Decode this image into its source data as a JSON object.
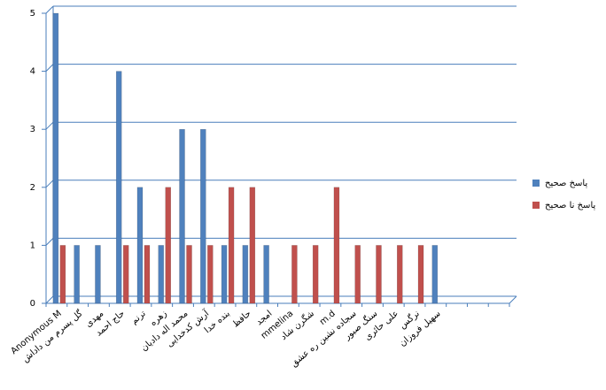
{
  "chart_data": {
    "type": "bar",
    "categories": [
      "Anonymous M",
      "گل پسرم من داداش",
      "مهدی",
      "حاج احمد",
      "ترنم",
      "زهره",
      "محمد اله دادیان",
      "آرش کدخدایی",
      "بنده خدا",
      "حافظ",
      "امجد",
      "mmelina",
      "شگرن شاد",
      "m.d",
      "سجاده نشین ره عشق",
      "سنگ صبور",
      "علی حائری",
      "نرگس",
      "سهیل فروزان",
      null,
      null,
      null
    ],
    "series": [
      {
        "name": "پاسخ صحیح",
        "color": "#4f81bd",
        "values": [
          5,
          1,
          1,
          4,
          2,
          1,
          3,
          3,
          1,
          1,
          1,
          0,
          0,
          0,
          0,
          0,
          0,
          0,
          1,
          null,
          null,
          null
        ]
      },
      {
        "name": "پاسخ نا صحیح",
        "color": "#c0504d",
        "values": [
          1,
          0,
          0,
          1,
          1,
          2,
          1,
          1,
          2,
          2,
          0,
          1,
          1,
          2,
          1,
          1,
          1,
          1,
          0,
          null,
          null,
          null
        ]
      }
    ],
    "ylim": [
      0,
      5
    ],
    "yticks": [
      0,
      1,
      2,
      3,
      4,
      5
    ],
    "grid": true,
    "legend": "right"
  }
}
